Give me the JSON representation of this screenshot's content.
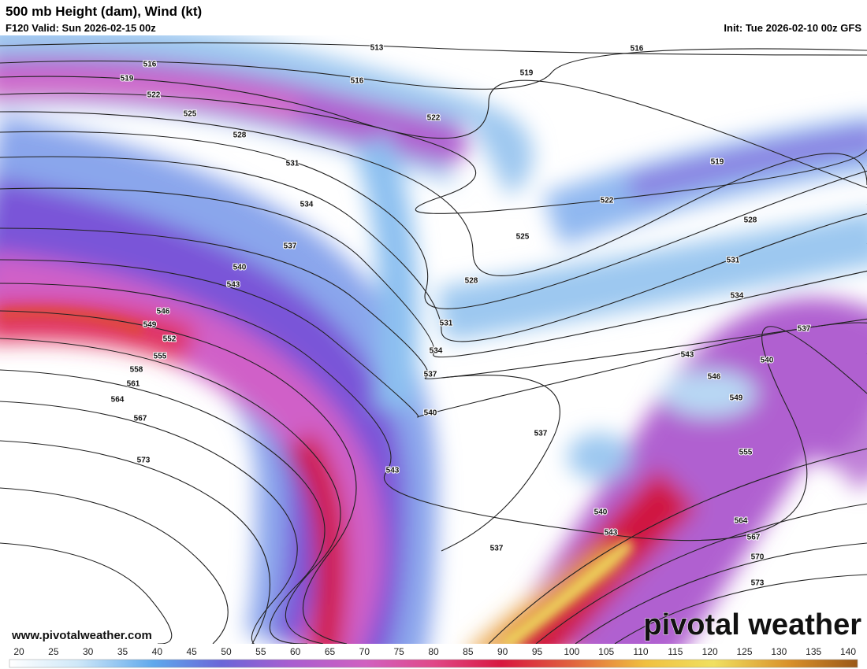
{
  "header": {
    "title": "500 mb Height (dam), Wind (kt)",
    "valid": "F120 Valid: Sun 2026-02-15 00z",
    "init": "Init: Tue 2026-02-10 00z GFS"
  },
  "map": {
    "contour_labels": [
      513,
      516,
      516,
      516,
      519,
      519,
      519,
      522,
      522,
      522,
      525,
      525,
      528,
      528,
      528,
      531,
      531,
      531,
      534,
      534,
      534,
      537,
      537,
      537,
      537,
      537,
      540,
      540,
      540,
      540,
      543,
      543,
      543,
      543,
      546,
      546,
      549,
      549,
      552,
      555,
      555,
      558,
      561,
      564,
      564,
      567,
      567,
      570,
      573,
      573
    ]
  },
  "colorbar": {
    "ticks": [
      20,
      25,
      30,
      35,
      40,
      45,
      50,
      55,
      60,
      65,
      70,
      75,
      80,
      85,
      90,
      95,
      100,
      105,
      110,
      115,
      120,
      125,
      130,
      135,
      140
    ]
  },
  "footer": {
    "website": "www.pivotalweather.com",
    "logo": "pivotal weather"
  }
}
